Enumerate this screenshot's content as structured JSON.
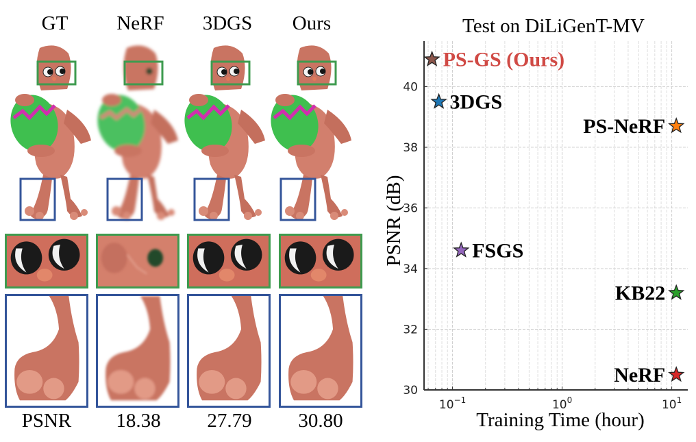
{
  "figure": {
    "columns": [
      {
        "label": "GT",
        "metric": "PSNR"
      },
      {
        "label": "NeRF",
        "metric": "18.38"
      },
      {
        "label": "3DGS",
        "metric": "27.79"
      },
      {
        "label": "Ours",
        "metric": "30.80"
      }
    ],
    "highlight_colors": {
      "eye_box": "#3e9b4f",
      "foot_box": "#34559a"
    },
    "image_content": "Rendered cartoon bunny holding green Easter egg, with zoomed eye and foot crops per method"
  },
  "chart_data": {
    "type": "scatter",
    "title": "Test on DiLiGenT-MV",
    "xlabel": "Training Time (hour)",
    "ylabel": "PSNR (dB)",
    "xscale": "log",
    "xlim": [
      0.055,
      14
    ],
    "ylim": [
      30,
      41.5
    ],
    "xticks": [
      {
        "value": 0.1,
        "base": "10",
        "exp": "−1"
      },
      {
        "value": 1,
        "base": "10",
        "exp": "0"
      },
      {
        "value": 10,
        "base": "10",
        "exp": "1"
      }
    ],
    "yticks": [
      30,
      32,
      34,
      36,
      38,
      40
    ],
    "grid": true,
    "marker": "star",
    "series": [
      {
        "name": "PS-GS (Ours)",
        "x": 0.065,
        "y": 40.9,
        "color": "#8c564b",
        "label_color": "#d04a45",
        "label_side": "right"
      },
      {
        "name": "3DGS",
        "x": 0.075,
        "y": 39.5,
        "color": "#1f77b4",
        "label_color": "#000000",
        "label_side": "right"
      },
      {
        "name": "PS-NeRF",
        "x": 11,
        "y": 38.7,
        "color": "#ff7f0e",
        "label_color": "#000000",
        "label_side": "left"
      },
      {
        "name": "FSGS",
        "x": 0.12,
        "y": 34.6,
        "color": "#9467bd",
        "label_color": "#000000",
        "label_side": "right"
      },
      {
        "name": "KB22",
        "x": 11,
        "y": 33.2,
        "color": "#2ca02c",
        "label_color": "#000000",
        "label_side": "left"
      },
      {
        "name": "NeRF",
        "x": 11,
        "y": 30.5,
        "color": "#d62728",
        "label_color": "#000000",
        "label_side": "left"
      }
    ]
  }
}
